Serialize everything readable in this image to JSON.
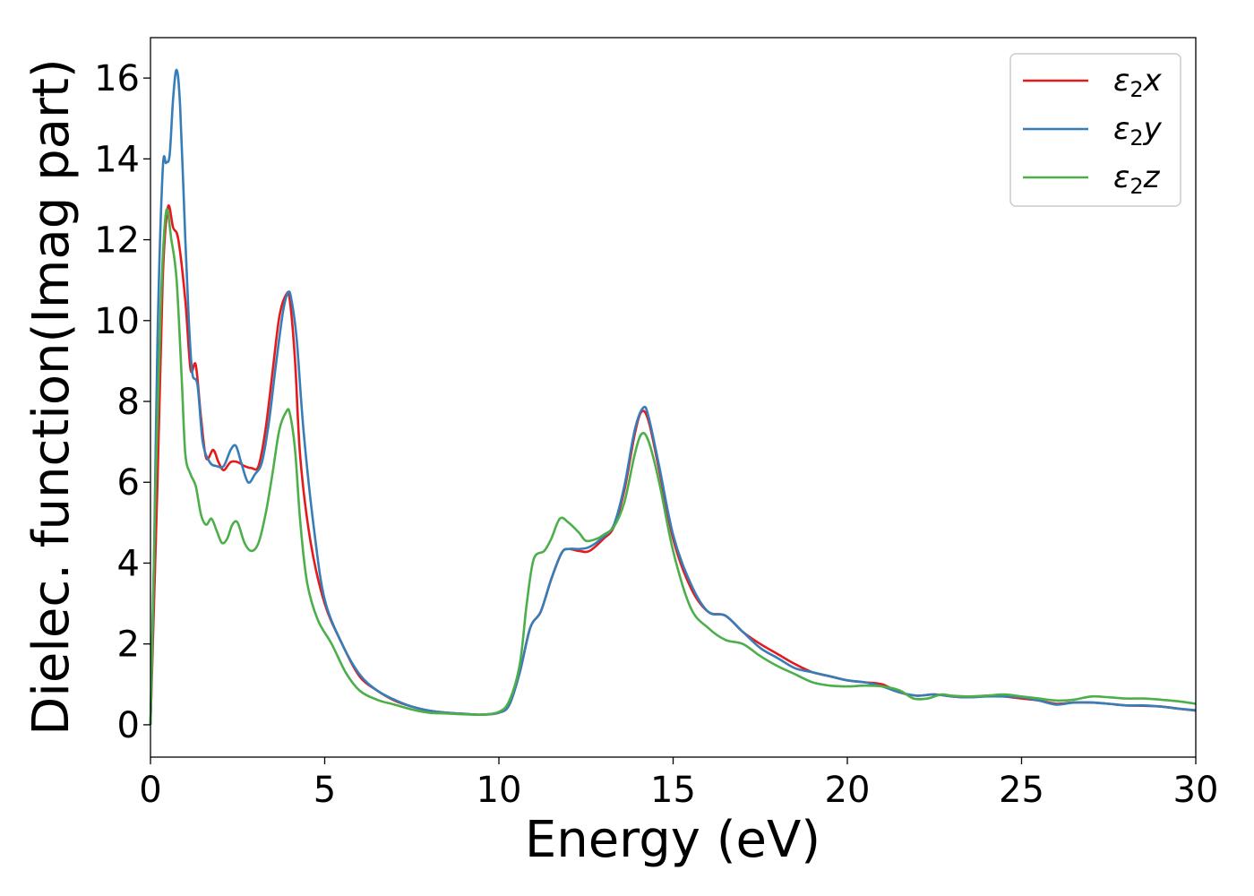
{
  "chart_data": {
    "type": "line",
    "title": "",
    "xlabel": "Energy (eV)",
    "ylabel": "Dielec. function(Imag part)",
    "xlim": [
      0,
      30
    ],
    "ylim": [
      -0.8,
      17.0
    ],
    "xticks": [
      0,
      5,
      10,
      15,
      20,
      25,
      30
    ],
    "yticks": [
      0,
      2,
      4,
      6,
      8,
      10,
      12,
      14,
      16
    ],
    "grid": false,
    "legend_position": "top-right",
    "series": [
      {
        "name": "ε2x",
        "legend": {
          "base": "ε",
          "sub": "2",
          "suffix": "x"
        },
        "color": "#e41a1c",
        "x": [
          0,
          0.2,
          0.35,
          0.5,
          0.65,
          0.8,
          1.0,
          1.15,
          1.3,
          1.45,
          1.6,
          1.8,
          1.95,
          2.1,
          2.3,
          2.5,
          2.7,
          2.9,
          3.1,
          3.3,
          3.5,
          3.7,
          3.9,
          4.0,
          4.15,
          4.3,
          4.6,
          5.0,
          5.5,
          6.0,
          6.5,
          7.0,
          7.5,
          8.0,
          8.5,
          9.0,
          9.5,
          10.0,
          10.3,
          10.6,
          10.9,
          11.2,
          11.5,
          11.8,
          12.0,
          12.3,
          12.6,
          13.0,
          13.3,
          13.6,
          13.9,
          14.1,
          14.3,
          14.6,
          15.0,
          15.5,
          16.0,
          16.5,
          17.0,
          17.5,
          18.0,
          18.5,
          19.0,
          19.5,
          20.0,
          20.5,
          21.0,
          21.5,
          22.0,
          22.5,
          23.0,
          23.5,
          24.0,
          24.5,
          25.0,
          25.5,
          26.0,
          26.5,
          27.0,
          27.5,
          28.0,
          28.5,
          29.0,
          29.5,
          30.0
        ],
        "y": [
          0.0,
          6.0,
          11.0,
          12.8,
          12.3,
          12.0,
          10.5,
          8.8,
          8.9,
          7.6,
          6.6,
          6.8,
          6.5,
          6.3,
          6.5,
          6.5,
          6.4,
          6.35,
          6.4,
          7.3,
          8.7,
          10.1,
          10.65,
          10.5,
          9.0,
          6.6,
          4.5,
          3.0,
          2.0,
          1.2,
          0.85,
          0.6,
          0.45,
          0.35,
          0.3,
          0.27,
          0.25,
          0.3,
          0.5,
          1.3,
          2.4,
          2.8,
          3.6,
          4.25,
          4.35,
          4.3,
          4.3,
          4.6,
          4.9,
          5.8,
          7.2,
          7.75,
          7.5,
          6.3,
          4.6,
          3.4,
          2.8,
          2.7,
          2.3,
          2.0,
          1.75,
          1.5,
          1.3,
          1.2,
          1.1,
          1.05,
          1.0,
          0.8,
          0.72,
          0.75,
          0.7,
          0.68,
          0.72,
          0.7,
          0.65,
          0.6,
          0.52,
          0.55,
          0.55,
          0.52,
          0.48,
          0.47,
          0.45,
          0.4,
          0.35
        ]
      },
      {
        "name": "ε2y",
        "legend": {
          "base": "ε",
          "sub": "2",
          "suffix": "y"
        },
        "color": "#377eb8",
        "x": [
          0,
          0.1,
          0.2,
          0.35,
          0.45,
          0.55,
          0.65,
          0.75,
          0.85,
          1.0,
          1.1,
          1.2,
          1.35,
          1.5,
          1.7,
          1.9,
          2.1,
          2.3,
          2.45,
          2.6,
          2.8,
          3.0,
          3.2,
          3.4,
          3.6,
          3.8,
          3.95,
          4.05,
          4.2,
          4.4,
          4.7,
          5.0,
          5.5,
          6.0,
          6.5,
          7.0,
          7.5,
          8.0,
          8.5,
          9.0,
          9.5,
          10.0,
          10.3,
          10.6,
          10.9,
          11.2,
          11.5,
          11.8,
          12.0,
          12.3,
          12.6,
          13.0,
          13.3,
          13.6,
          13.9,
          14.15,
          14.3,
          14.6,
          15.0,
          15.5,
          16.0,
          16.5,
          17.0,
          17.5,
          18.0,
          18.5,
          19.0,
          19.5,
          20.0,
          20.5,
          21.0,
          21.5,
          22.0,
          22.5,
          23.0,
          23.5,
          24.0,
          24.5,
          25.0,
          25.5,
          26.0,
          26.5,
          27.0,
          27.5,
          28.0,
          28.5,
          29.0,
          29.5,
          30.0
        ],
        "y": [
          0.0,
          4.0,
          9.5,
          13.7,
          13.9,
          14.1,
          15.5,
          16.2,
          15.3,
          12.0,
          10.0,
          8.7,
          8.4,
          7.0,
          6.5,
          6.4,
          6.4,
          6.8,
          6.9,
          6.5,
          6.0,
          6.2,
          6.5,
          7.5,
          8.9,
          10.2,
          10.7,
          10.5,
          9.5,
          7.2,
          4.8,
          3.1,
          2.0,
          1.25,
          0.85,
          0.62,
          0.45,
          0.35,
          0.3,
          0.27,
          0.25,
          0.3,
          0.5,
          1.3,
          2.4,
          2.8,
          3.6,
          4.25,
          4.35,
          4.35,
          4.4,
          4.65,
          4.95,
          5.9,
          7.3,
          7.85,
          7.6,
          6.4,
          4.7,
          3.5,
          2.8,
          2.7,
          2.3,
          1.9,
          1.65,
          1.4,
          1.3,
          1.2,
          1.1,
          1.05,
          0.95,
          0.8,
          0.72,
          0.75,
          0.7,
          0.68,
          0.7,
          0.7,
          0.68,
          0.6,
          0.5,
          0.55,
          0.55,
          0.52,
          0.48,
          0.48,
          0.45,
          0.4,
          0.36
        ]
      },
      {
        "name": "ε2z",
        "legend": {
          "base": "ε",
          "sub": "2",
          "suffix": "z"
        },
        "color": "#4daf4a",
        "x": [
          0,
          0.15,
          0.3,
          0.45,
          0.6,
          0.75,
          0.9,
          1.0,
          1.15,
          1.3,
          1.45,
          1.6,
          1.75,
          1.9,
          2.05,
          2.2,
          2.35,
          2.5,
          2.7,
          2.9,
          3.1,
          3.3,
          3.5,
          3.7,
          3.9,
          4.0,
          4.15,
          4.3,
          4.5,
          4.8,
          5.2,
          5.6,
          6.0,
          6.5,
          7.0,
          7.5,
          8.0,
          8.5,
          9.0,
          9.5,
          10.0,
          10.3,
          10.6,
          10.8,
          11.0,
          11.3,
          11.5,
          11.75,
          12.0,
          12.3,
          12.5,
          12.8,
          13.0,
          13.3,
          13.6,
          13.9,
          14.1,
          14.3,
          14.6,
          15.0,
          15.5,
          16.0,
          16.5,
          17.0,
          17.5,
          18.0,
          18.5,
          19.0,
          19.5,
          20.0,
          20.5,
          21.0,
          21.5,
          21.9,
          22.3,
          22.7,
          23.0,
          23.5,
          24.0,
          24.5,
          25.0,
          25.5,
          26.0,
          26.5,
          27.0,
          27.5,
          28.0,
          28.5,
          29.0,
          29.5,
          30.0
        ],
        "y": [
          0.0,
          6.0,
          10.5,
          12.7,
          12.0,
          11.0,
          8.5,
          6.7,
          6.2,
          5.9,
          5.2,
          4.95,
          5.1,
          4.8,
          4.5,
          4.6,
          4.95,
          5.0,
          4.5,
          4.3,
          4.5,
          5.2,
          6.2,
          7.3,
          7.75,
          7.7,
          6.8,
          5.0,
          3.5,
          2.6,
          2.0,
          1.3,
          0.85,
          0.62,
          0.5,
          0.38,
          0.3,
          0.28,
          0.26,
          0.25,
          0.32,
          0.6,
          1.5,
          3.0,
          4.1,
          4.3,
          4.6,
          5.1,
          5.0,
          4.75,
          4.55,
          4.6,
          4.7,
          4.9,
          5.5,
          6.7,
          7.2,
          7.0,
          6.0,
          4.3,
          2.9,
          2.4,
          2.1,
          2.0,
          1.7,
          1.45,
          1.25,
          1.05,
          0.97,
          0.95,
          0.97,
          0.95,
          0.85,
          0.65,
          0.65,
          0.75,
          0.72,
          0.7,
          0.72,
          0.75,
          0.7,
          0.65,
          0.6,
          0.62,
          0.7,
          0.68,
          0.65,
          0.65,
          0.62,
          0.58,
          0.52
        ]
      }
    ]
  }
}
